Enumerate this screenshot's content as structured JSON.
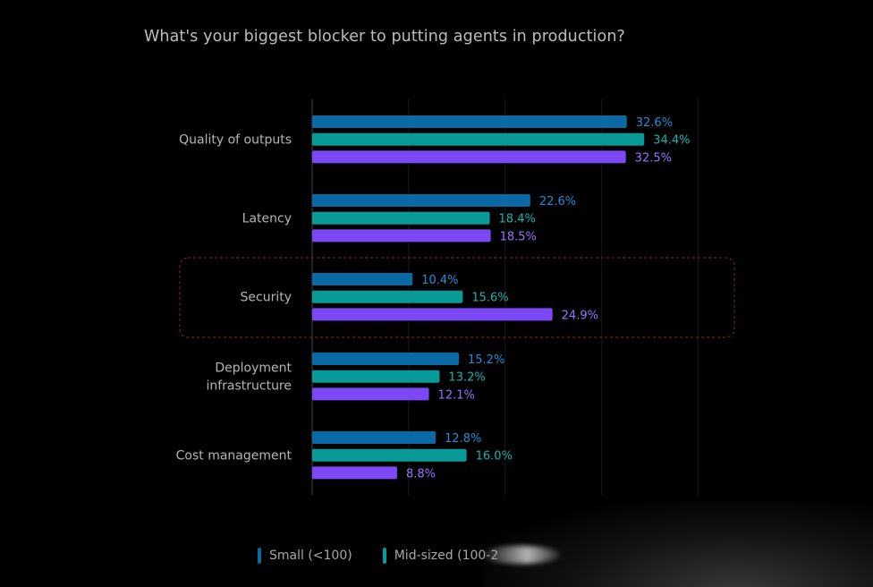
{
  "chart_data": {
    "type": "bar",
    "orientation": "horizontal",
    "title": "What's your biggest blocker to putting agents in production?",
    "categories": [
      "Quality of outputs",
      "Latency",
      "Security",
      "Deployment infrastructure",
      "Cost management"
    ],
    "series": [
      {
        "name": "Small (<100)",
        "color": "#0a6aa6",
        "label_color": "#1f8fd8",
        "values": [
          32.6,
          22.6,
          10.4,
          15.2,
          12.8
        ]
      },
      {
        "name": "Mid-sized (100-2",
        "color": "#079a98",
        "label_color": "#14b5b0",
        "values": [
          34.4,
          18.4,
          15.6,
          13.2,
          16.0
        ]
      },
      {
        "series_color_note": "",
        "color": "#7c47f5",
        "label_color": "#9a72ff",
        "values": [
          32.5,
          18.5,
          24.9,
          12.1,
          8.8
        ]
      }
    ],
    "value_suffix": "%",
    "xlim": [
      0,
      40
    ],
    "grid": true,
    "highlighted_category": "Security",
    "legend_position": "bottom"
  }
}
